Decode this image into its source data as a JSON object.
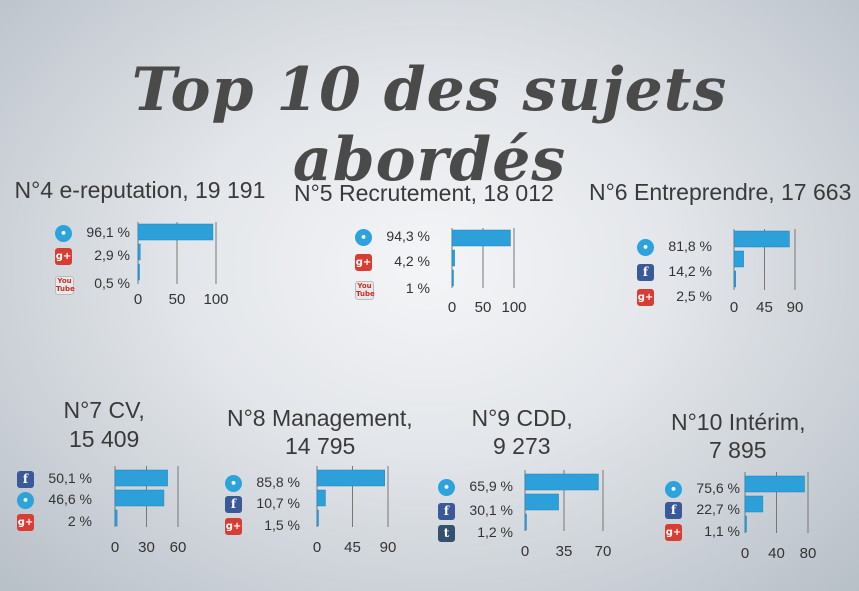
{
  "title": "Top 10 des sujets abordés",
  "chart_data": [
    {
      "type": "bar",
      "title": "N°4 e-reputation, 19 191",
      "categories": [
        "twitter",
        "google-plus",
        "youtube"
      ],
      "value_labels": [
        "96,1 %",
        "2,9 %",
        "0,5 %"
      ],
      "values": [
        96.1,
        2.9,
        0.5
      ],
      "xlim": [
        0,
        100
      ],
      "ticks": [
        "0",
        "50",
        "100"
      ],
      "tick_values": [
        0,
        50,
        100
      ],
      "grid": true
    },
    {
      "type": "bar",
      "title": "N°5 Recrutement, 18 012",
      "categories": [
        "twitter",
        "google-plus",
        "youtube"
      ],
      "value_labels": [
        "94,3 %",
        "4,2 %",
        "1 %"
      ],
      "values": [
        94.3,
        4.2,
        1
      ],
      "xlim": [
        0,
        100
      ],
      "ticks": [
        "0",
        "50",
        "100"
      ],
      "tick_values": [
        0,
        50,
        100
      ],
      "grid": true
    },
    {
      "type": "bar",
      "title": "N°6 Entreprendre, 17 663",
      "categories": [
        "twitter",
        "facebook",
        "google-plus"
      ],
      "value_labels": [
        "81,8 %",
        "14,2 %",
        "2,5 %"
      ],
      "values": [
        81.8,
        14.2,
        2.5
      ],
      "xlim": [
        0,
        90
      ],
      "ticks": [
        "0",
        "45",
        "90"
      ],
      "tick_values": [
        0,
        45,
        90
      ],
      "grid": true
    },
    {
      "type": "bar",
      "title": "N°7 CV,\n15 409",
      "categories": [
        "facebook",
        "twitter",
        "google-plus"
      ],
      "value_labels": [
        "50,1 %",
        "46,6 %",
        "2 %"
      ],
      "values": [
        50.1,
        46.6,
        2
      ],
      "xlim": [
        0,
        60
      ],
      "ticks": [
        "0",
        "30",
        "60"
      ],
      "tick_values": [
        0,
        30,
        60
      ],
      "grid": true
    },
    {
      "type": "bar",
      "title": "N°8 Management,\n14 795",
      "categories": [
        "twitter",
        "facebook",
        "google-plus"
      ],
      "value_labels": [
        "85,8 %",
        "10,7 %",
        "1,5 %"
      ],
      "values": [
        85.8,
        10.7,
        1.5
      ],
      "xlim": [
        0,
        90
      ],
      "ticks": [
        "0",
        "45",
        "90"
      ],
      "tick_values": [
        0,
        45,
        90
      ],
      "grid": true
    },
    {
      "type": "bar",
      "title": "N°9 CDD,\n9 273",
      "categories": [
        "twitter",
        "facebook",
        "tumblr"
      ],
      "value_labels": [
        "65,9 %",
        "30,1 %",
        "1,2 %"
      ],
      "values": [
        65.9,
        30.1,
        1.2
      ],
      "xlim": [
        0,
        70
      ],
      "ticks": [
        "0",
        "35",
        "70"
      ],
      "tick_values": [
        0,
        35,
        70
      ],
      "grid": true
    },
    {
      "type": "bar",
      "title": "N°10 Intérim,\n7 895",
      "categories": [
        "twitter",
        "facebook",
        "google-plus"
      ],
      "value_labels": [
        "75,6 %",
        "22,7 %",
        "1,1 %"
      ],
      "values": [
        75.6,
        22.7,
        1.1
      ],
      "xlim": [
        0,
        80
      ],
      "ticks": [
        "0",
        "40",
        "80"
      ],
      "tick_values": [
        0,
        40,
        80
      ],
      "grid": true
    }
  ],
  "colors": {
    "bar": "#2d9fd9",
    "bar_edge": "#1e86bd",
    "grid": "#777777",
    "title": "#4a4a4a"
  },
  "icons": {
    "twitter": "twitter-icon",
    "facebook": "facebook-icon",
    "google-plus": "google-plus-icon",
    "youtube": "youtube-icon",
    "tumblr": "tumblr-icon"
  }
}
